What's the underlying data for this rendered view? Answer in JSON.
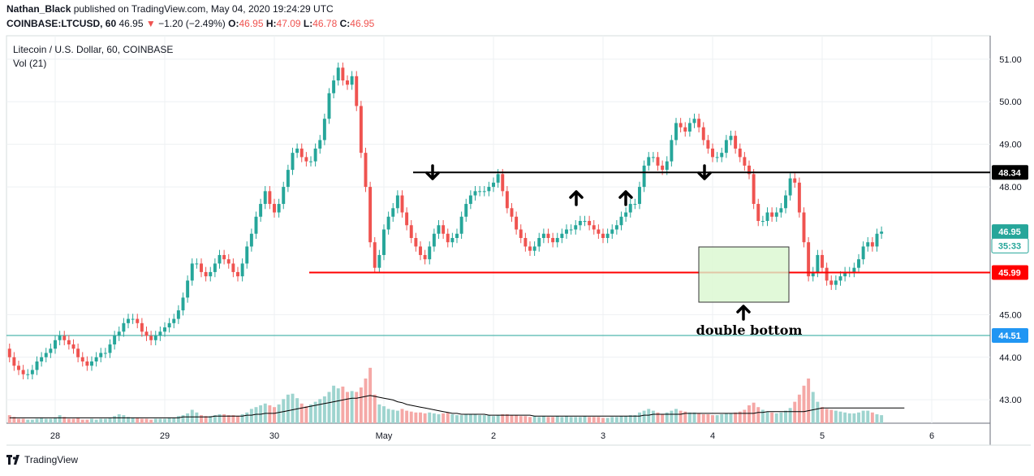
{
  "header": {
    "author": "Nathan_Black",
    "published_text": " published on TradingView.com, May 04, 2020 19:24:29 UTC",
    "symbol": "COINBASE:LTCUSD, 60",
    "last": "46.95",
    "arrow": "▼",
    "change": "−1.20 (−2.49%)",
    "o_label": "O:",
    "o_value": "46.95",
    "h_label": "H:",
    "h_value": "47.09",
    "l_label": "L:",
    "l_value": "46.78",
    "c_label": "C:",
    "c_value": "46.95"
  },
  "legend": {
    "series_title": "Litecoin / U.S. Dollar, 60, COINBASE",
    "volume_title": "Vol (21)"
  },
  "footer": {
    "brand": "TradingView"
  },
  "annotation": {
    "pattern_label": "double bottom"
  },
  "colors": {
    "up": "#26a69a",
    "down": "#ef5350",
    "resistance": "#000000",
    "support": "#ff0000",
    "box_fill": "#d9f7cf",
    "box_stroke": "#333333",
    "hline": "#26a69a",
    "price_tag_blue": "#2196f3"
  },
  "chart_data": {
    "type": "candlestick",
    "title": "Litecoin / U.S. Dollar, 60, COINBASE",
    "x_ticks": [
      "28",
      "29",
      "30",
      "May",
      "2",
      "3",
      "4",
      "5",
      "6"
    ],
    "y_ticks": [
      "51.00",
      "50.00",
      "49.00",
      "48.00",
      "45.00",
      "44.00",
      "43.00"
    ],
    "ylim": [
      42.45,
      51.55
    ],
    "price_labels": [
      {
        "text": "48.34",
        "value": 48.34,
        "style": "black"
      },
      {
        "text": "46.95",
        "value": 46.95,
        "style": "teal"
      },
      {
        "text": "35:33",
        "value": 46.62,
        "style": "teal-outline"
      },
      {
        "text": "45.99",
        "value": 45.99,
        "style": "red"
      },
      {
        "text": "44.51",
        "value": 44.51,
        "style": "blue"
      }
    ],
    "resistance_level": 48.34,
    "support_level": 45.99,
    "reference_level": 44.51,
    "volume_ma_period": 21,
    "bars_per_day": 24,
    "candles_o": [
      44.2,
      44.0,
      43.8,
      43.7,
      43.6,
      43.6,
      43.7,
      43.9,
      44.0,
      44.1,
      44.2,
      44.4,
      44.5,
      44.4,
      44.3,
      44.2,
      44.0,
      43.9,
      43.8,
      43.9,
      44.0,
      44.1,
      44.1,
      44.3,
      44.5,
      44.6,
      44.8,
      44.9,
      44.9,
      44.8,
      44.6,
      44.5,
      44.4,
      44.5,
      44.6,
      44.7,
      44.8,
      44.9,
      45.1,
      45.4,
      45.8,
      46.2,
      46.2,
      46.0,
      45.9,
      46.0,
      46.2,
      46.4,
      46.3,
      46.2,
      46.0,
      45.9,
      46.2,
      46.6,
      46.9,
      47.3,
      47.6,
      47.9,
      47.6,
      47.4,
      47.6,
      48.0,
      48.4,
      48.8,
      48.9,
      48.7,
      48.6,
      48.6,
      48.9,
      49.1,
      49.6,
      50.2,
      50.5,
      50.8,
      50.5,
      50.4,
      50.6,
      49.9,
      48.8,
      48.0,
      46.7,
      46.1,
      46.4,
      47.0,
      47.3,
      47.5,
      47.8,
      47.4,
      47.1,
      46.8,
      46.6,
      46.4,
      46.3,
      46.6,
      46.9,
      47.1,
      46.9,
      46.7,
      46.8,
      46.9,
      47.3,
      47.6,
      47.8,
      47.9,
      47.9,
      47.9,
      48.0,
      48.1,
      48.3,
      47.9,
      47.5,
      47.3,
      47.0,
      46.8,
      46.6,
      46.5,
      46.6,
      46.8,
      46.9,
      46.8,
      46.7,
      46.8,
      46.9,
      47.0,
      47.0,
      47.1,
      47.2,
      47.2,
      47.1,
      47.0,
      46.9,
      46.8,
      46.9,
      47.0,
      47.1,
      47.3,
      47.4,
      47.6,
      47.6,
      48.0,
      48.5,
      48.7,
      48.7,
      48.5,
      48.4,
      48.6,
      49.1,
      49.5,
      49.4,
      49.3,
      49.5,
      49.6,
      49.4,
      49.1,
      48.9,
      48.7,
      48.7,
      48.8,
      49.1,
      49.2,
      48.9,
      48.7,
      48.5,
      48.3,
      47.6,
      47.2,
      47.2,
      47.4,
      47.3,
      47.4,
      47.5,
      47.8,
      48.2,
      48.1,
      47.4,
      46.7,
      45.9,
      46.0,
      46.4,
      46.1,
      45.8,
      45.7,
      45.8,
      45.9,
      46.0,
      46.0,
      46.1,
      46.3,
      46.6,
      46.7,
      46.6,
      46.9
    ],
    "candles_c": [
      44.0,
      43.8,
      43.7,
      43.6,
      43.6,
      43.7,
      43.9,
      44.0,
      44.1,
      44.2,
      44.4,
      44.5,
      44.4,
      44.3,
      44.2,
      44.0,
      43.9,
      43.8,
      43.9,
      44.0,
      44.1,
      44.1,
      44.3,
      44.5,
      44.6,
      44.8,
      44.9,
      44.9,
      44.8,
      44.6,
      44.5,
      44.4,
      44.5,
      44.6,
      44.7,
      44.8,
      44.9,
      45.1,
      45.4,
      45.8,
      46.2,
      46.2,
      46.0,
      45.9,
      46.0,
      46.2,
      46.4,
      46.3,
      46.2,
      46.0,
      45.9,
      46.2,
      46.6,
      46.9,
      47.3,
      47.6,
      47.9,
      47.6,
      47.4,
      47.6,
      48.0,
      48.4,
      48.8,
      48.9,
      48.7,
      48.6,
      48.6,
      48.9,
      49.1,
      49.6,
      50.2,
      50.5,
      50.8,
      50.5,
      50.4,
      50.6,
      49.9,
      48.8,
      48.0,
      46.7,
      46.1,
      46.4,
      47.0,
      47.3,
      47.5,
      47.8,
      47.4,
      47.1,
      46.8,
      46.6,
      46.4,
      46.3,
      46.6,
      46.9,
      47.1,
      46.9,
      46.7,
      46.8,
      46.9,
      47.3,
      47.6,
      47.8,
      47.9,
      47.9,
      47.9,
      48.0,
      48.1,
      48.3,
      47.9,
      47.5,
      47.3,
      47.0,
      46.8,
      46.6,
      46.5,
      46.6,
      46.8,
      46.9,
      46.8,
      46.7,
      46.8,
      46.9,
      47.0,
      47.0,
      47.1,
      47.2,
      47.2,
      47.1,
      47.0,
      46.9,
      46.8,
      46.9,
      47.0,
      47.1,
      47.3,
      47.4,
      47.6,
      47.6,
      48.0,
      48.5,
      48.7,
      48.7,
      48.5,
      48.4,
      48.6,
      49.1,
      49.5,
      49.4,
      49.3,
      49.5,
      49.6,
      49.4,
      49.1,
      48.9,
      48.7,
      48.7,
      48.8,
      49.1,
      49.2,
      48.9,
      48.7,
      48.5,
      48.3,
      47.6,
      47.2,
      47.2,
      47.4,
      47.3,
      47.4,
      47.5,
      47.8,
      48.2,
      48.1,
      47.4,
      46.7,
      45.9,
      46.0,
      46.4,
      46.1,
      45.8,
      45.7,
      45.8,
      45.9,
      46.0,
      46.0,
      46.1,
      46.3,
      46.6,
      46.7,
      46.6,
      46.9,
      46.95
    ],
    "volume": [
      0.9,
      0.7,
      0.5,
      0.5,
      0.4,
      0.4,
      0.5,
      0.6,
      0.5,
      0.5,
      0.6,
      0.9,
      0.7,
      0.5,
      0.5,
      0.6,
      0.4,
      0.4,
      0.5,
      0.4,
      0.5,
      0.5,
      0.6,
      0.8,
      1.0,
      0.9,
      0.7,
      0.6,
      0.6,
      0.5,
      0.5,
      0.4,
      0.5,
      0.5,
      0.5,
      0.6,
      0.6,
      0.8,
      0.9,
      1.1,
      1.5,
      1.2,
      0.9,
      0.8,
      0.8,
      0.9,
      1.0,
      1.0,
      0.9,
      0.9,
      0.8,
      1.0,
      1.2,
      1.6,
      1.8,
      2.0,
      2.2,
      2.0,
      1.8,
      2.1,
      2.7,
      3.2,
      3.3,
      2.8,
      2.2,
      1.9,
      2.1,
      2.4,
      2.7,
      3.0,
      3.5,
      4.2,
      3.9,
      4.1,
      3.5,
      3.6,
      3.5,
      4.0,
      5.0,
      6.2,
      3.2,
      2.1,
      1.9,
      1.6,
      1.5,
      1.4,
      1.6,
      1.4,
      1.3,
      1.2,
      1.2,
      1.1,
      1.2,
      1.1,
      1.0,
      1.1,
      1.2,
      1.0,
      0.9,
      0.9,
      1.0,
      1.0,
      1.0,
      0.9,
      0.9,
      0.9,
      0.8,
      0.9,
      1.0,
      1.0,
      0.9,
      0.9,
      0.8,
      0.8,
      0.7,
      0.8,
      0.7,
      0.8,
      0.7,
      0.7,
      0.8,
      0.7,
      0.8,
      0.7,
      0.7,
      0.7,
      0.8,
      0.7,
      0.7,
      0.7,
      0.6,
      0.6,
      0.7,
      0.7,
      0.8,
      0.8,
      0.9,
      0.9,
      1.2,
      1.4,
      1.6,
      1.4,
      1.2,
      1.0,
      1.2,
      1.4,
      1.6,
      1.4,
      1.3,
      1.2,
      1.2,
      1.1,
      1.0,
      1.0,
      0.9,
      0.9,
      1.0,
      1.1,
      1.1,
      1.2,
      1.3,
      1.5,
      2.0,
      2.3,
      1.8,
      1.5,
      1.3,
      1.2,
      1.1,
      1.2,
      1.4,
      1.7,
      2.4,
      3.2,
      4.2,
      5.0,
      3.5,
      2.4,
      1.8,
      1.6,
      1.5,
      1.4,
      1.3,
      1.2,
      1.1,
      1.1,
      1.2,
      1.4,
      1.4,
      1.2,
      1.0,
      0.9
    ],
    "volume_ma": [
      0.6,
      0.6,
      0.6,
      0.6,
      0.6,
      0.6,
      0.6,
      0.6,
      0.6,
      0.6,
      0.6,
      0.6,
      0.6,
      0.6,
      0.6,
      0.6,
      0.6,
      0.6,
      0.6,
      0.6,
      0.6,
      0.6,
      0.6,
      0.6,
      0.6,
      0.6,
      0.6,
      0.6,
      0.6,
      0.6,
      0.6,
      0.6,
      0.6,
      0.6,
      0.6,
      0.6,
      0.6,
      0.6,
      0.7,
      0.7,
      0.7,
      0.7,
      0.7,
      0.7,
      0.7,
      0.8,
      0.8,
      0.8,
      0.8,
      0.8,
      0.8,
      0.8,
      0.9,
      0.9,
      1.0,
      1.0,
      1.1,
      1.1,
      1.1,
      1.2,
      1.3,
      1.4,
      1.5,
      1.6,
      1.7,
      1.8,
      1.9,
      2.0,
      2.1,
      2.2,
      2.3,
      2.4,
      2.5,
      2.6,
      2.7,
      2.8,
      2.8,
      2.9,
      3.0,
      3.1,
      3.0,
      2.9,
      2.8,
      2.7,
      2.6,
      2.4,
      2.3,
      2.1,
      2.0,
      1.9,
      1.8,
      1.7,
      1.6,
      1.5,
      1.4,
      1.3,
      1.2,
      1.1,
      1.1,
      1.0,
      1.0,
      1.0,
      1.0,
      1.0,
      1.0,
      0.9,
      0.9,
      0.9,
      0.9,
      0.9,
      0.9,
      0.9,
      0.9,
      0.9,
      0.9,
      0.8,
      0.8,
      0.8,
      0.8,
      0.8,
      0.8,
      0.8,
      0.8,
      0.8,
      0.8,
      0.8,
      0.8,
      0.8,
      0.8,
      0.8,
      0.8,
      0.8,
      0.8,
      0.8,
      0.8,
      0.8,
      0.8,
      0.8,
      0.8,
      0.9,
      0.9,
      1.0,
      1.0,
      1.0,
      1.0,
      1.0,
      1.0,
      1.0,
      1.1,
      1.1,
      1.1,
      1.1,
      1.1,
      1.1,
      1.1,
      1.1,
      1.1,
      1.1,
      1.1,
      1.1,
      1.1,
      1.1,
      1.1,
      1.1,
      1.2,
      1.2,
      1.3,
      1.3,
      1.3,
      1.3,
      1.3,
      1.3,
      1.3,
      1.3,
      1.3,
      1.4,
      1.5,
      1.6,
      1.7,
      1.7,
      1.7,
      1.7,
      1.7,
      1.7,
      1.7,
      1.7,
      1.7,
      1.7,
      1.7,
      1.7,
      1.7,
      1.7,
      1.7,
      1.7,
      1.7,
      1.7,
      1.7
    ]
  }
}
